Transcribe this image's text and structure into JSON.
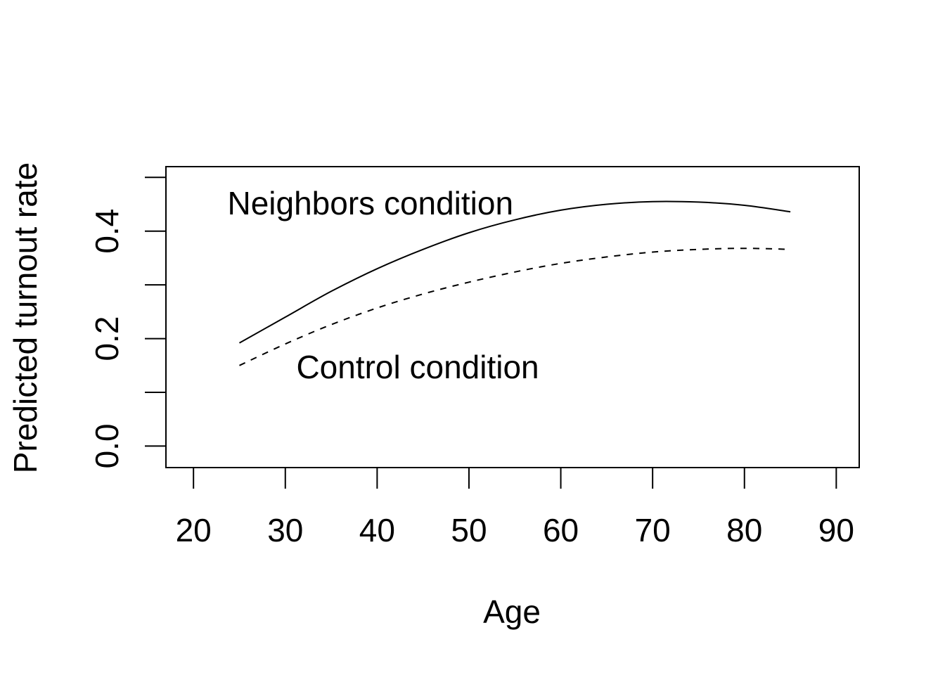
{
  "chart_data": {
    "type": "line",
    "xlabel": "Age",
    "ylabel": "Predicted turnout rate",
    "xlim": [
      17,
      92.5
    ],
    "ylim": [
      -0.04,
      0.52
    ],
    "x_ticks": [
      20,
      30,
      40,
      50,
      60,
      70,
      80,
      90
    ],
    "x_tick_labels": [
      "20",
      "30",
      "40",
      "50",
      "60",
      "70",
      "80",
      "90"
    ],
    "y_ticks": [
      0.0,
      0.1,
      0.2,
      0.3,
      0.4,
      0.5
    ],
    "y_tick_labels": [
      "0.0",
      "",
      "0.2",
      "",
      "0.4",
      ""
    ],
    "grid": false,
    "x": [
      25,
      30,
      35,
      40,
      45,
      50,
      55,
      60,
      65,
      70,
      75,
      80,
      85
    ],
    "series": [
      {
        "key": "neighbors",
        "line_style": "solid",
        "values": [
          0.192,
          0.24,
          0.288,
          0.33,
          0.366,
          0.397,
          0.421,
          0.439,
          0.45,
          0.455,
          0.454,
          0.448,
          0.436
        ]
      },
      {
        "key": "control",
        "line_style": "dashed",
        "values": [
          0.15,
          0.19,
          0.226,
          0.257,
          0.283,
          0.305,
          0.324,
          0.34,
          0.352,
          0.361,
          0.366,
          0.368,
          0.366
        ]
      }
    ],
    "annotations": [
      {
        "text": "Neighbors condition",
        "x": 23.7,
        "y": 0.452,
        "series": "neighbors"
      },
      {
        "text": "Control condition",
        "x": 31.2,
        "y": 0.147,
        "series": "control"
      }
    ],
    "line_color": "#000000"
  }
}
